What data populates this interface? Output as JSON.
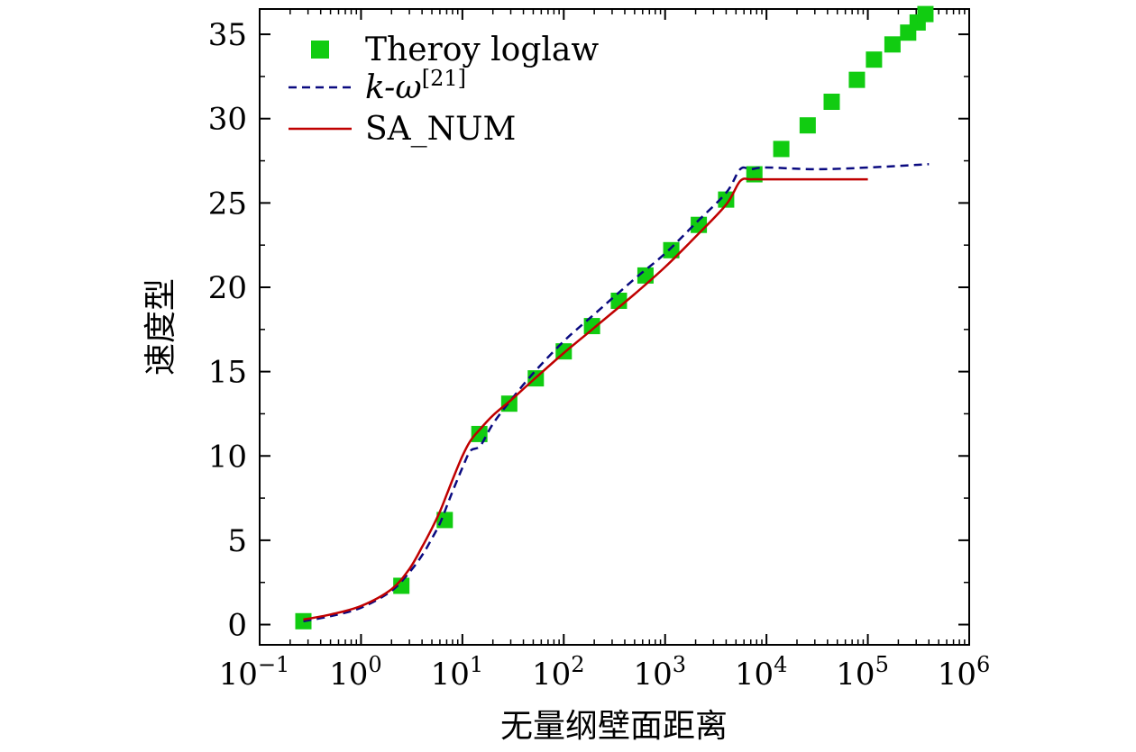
{
  "chart_data": {
    "type": "line",
    "xlabel": "无量纲壁面距离",
    "ylabel": "速度型",
    "xscale": "log",
    "xlim": [
      0.1,
      1000000
    ],
    "ylim": [
      -1.2,
      36.5
    ],
    "x_ticks": [
      {
        "value": 0.1,
        "base": "10",
        "exp": "−1"
      },
      {
        "value": 1,
        "base": "10",
        "exp": "0"
      },
      {
        "value": 10,
        "base": "10",
        "exp": "1"
      },
      {
        "value": 100,
        "base": "10",
        "exp": "2"
      },
      {
        "value": 1000,
        "base": "10",
        "exp": "3"
      },
      {
        "value": 10000,
        "base": "10",
        "exp": "4"
      },
      {
        "value": 100000,
        "base": "10",
        "exp": "5"
      },
      {
        "value": 1000000,
        "base": "10",
        "exp": "6"
      }
    ],
    "y_ticks": [
      {
        "value": 0,
        "label": "0"
      },
      {
        "value": 5,
        "label": "5"
      },
      {
        "value": 10,
        "label": "10"
      },
      {
        "value": 15,
        "label": "15"
      },
      {
        "value": 20,
        "label": "20"
      },
      {
        "value": 25,
        "label": "25"
      },
      {
        "value": 30,
        "label": "30"
      },
      {
        "value": 35,
        "label": "35"
      }
    ],
    "legend_position": "top-left",
    "series": [
      {
        "name": "Theroy loglaw",
        "style": "markers",
        "color": "#11cc11",
        "x": [
          0.27,
          2.5,
          6.7,
          14.7,
          29,
          53,
          100,
          190,
          350,
          640,
          1150,
          2150,
          4000,
          7600,
          14000,
          25500,
          44000,
          78000,
          115000,
          175000,
          250000,
          310000,
          370000
        ],
        "y": [
          0.2,
          2.3,
          6.2,
          11.3,
          13.1,
          14.6,
          16.2,
          17.7,
          19.2,
          20.7,
          22.2,
          23.7,
          25.2,
          26.7,
          28.2,
          29.6,
          31.0,
          32.3,
          33.5,
          34.4,
          35.1,
          35.7,
          36.2
        ]
      },
      {
        "name": "k-ω",
        "name_main": "k-ω",
        "name_ref": "[21]",
        "style": "dashed",
        "color": "#0a0a80",
        "x": [
          0.27,
          0.5,
          1,
          2,
          3,
          4,
          5,
          6,
          7,
          8,
          10,
          12,
          15,
          20,
          30,
          50,
          100,
          200,
          500,
          1000,
          2000,
          4000,
          5500,
          7000,
          10000,
          30000,
          100000,
          400000
        ],
        "y": [
          0.2,
          0.5,
          1.0,
          2.0,
          3.1,
          4.1,
          5.1,
          6.0,
          7.0,
          7.9,
          9.3,
          10.3,
          10.6,
          11.9,
          13.3,
          14.9,
          16.8,
          18.4,
          20.5,
          22.0,
          23.8,
          25.6,
          27.0,
          27.0,
          27.1,
          27.0,
          27.1,
          27.3
        ]
      },
      {
        "name": "SA_NUM",
        "style": "solid",
        "color": "#c00000",
        "x": [
          0.27,
          0.5,
          1,
          2,
          3,
          4,
          5,
          6,
          7,
          8,
          10,
          12,
          15,
          20,
          30,
          50,
          100,
          200,
          500,
          1000,
          2000,
          4000,
          5500,
          7000,
          10000,
          30000,
          100000
        ],
        "y": [
          0.3,
          0.6,
          1.1,
          2.1,
          3.3,
          4.6,
          5.7,
          6.7,
          7.7,
          8.6,
          10.0,
          10.9,
          11.6,
          12.4,
          13.3,
          14.5,
          16.1,
          17.6,
          19.6,
          21.2,
          23.0,
          24.9,
          26.3,
          26.4,
          26.4,
          26.4,
          26.4
        ]
      }
    ]
  }
}
